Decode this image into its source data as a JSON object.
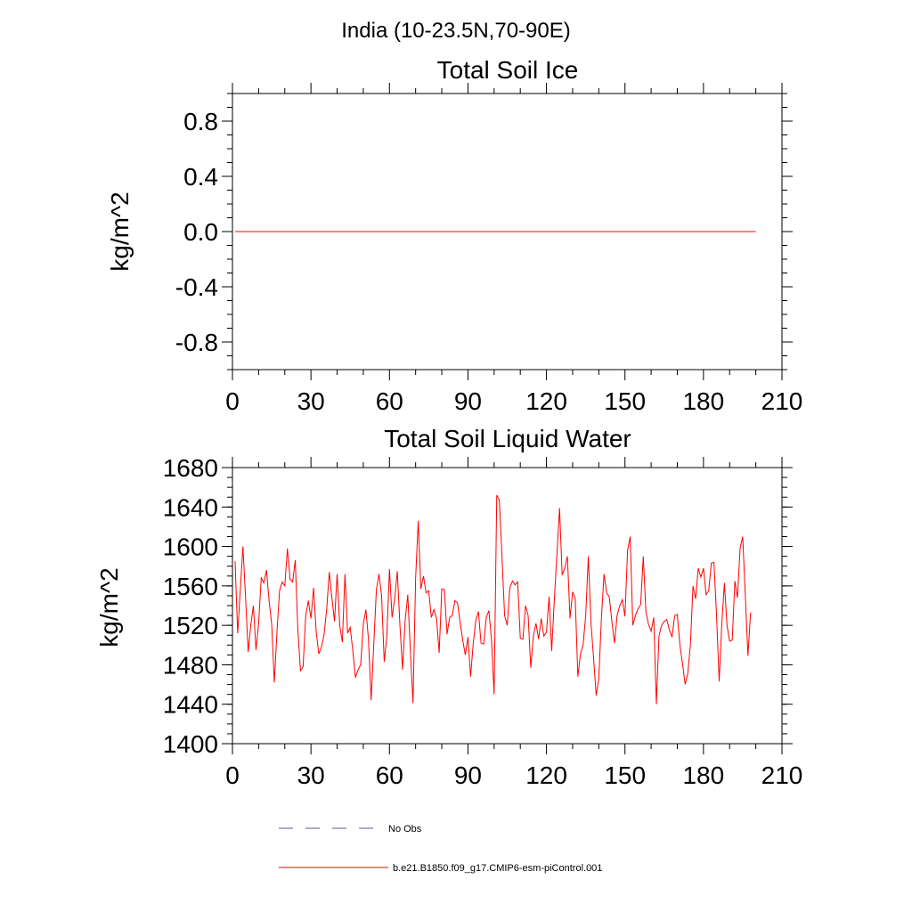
{
  "title": "India (10-23.5N,70-90E)",
  "chart_data": [
    {
      "type": "line",
      "title": "Total Soil Ice",
      "xlabel": "",
      "ylabel": "kg/m^2",
      "xlim": [
        0,
        210
      ],
      "ylim": [
        -1.0,
        1.0
      ],
      "xticks": [
        "0",
        "30",
        "60",
        "90",
        "120",
        "150",
        "180",
        "210"
      ],
      "yticks": [
        "0.8",
        "0.4",
        "0.0",
        "-0.4",
        "-0.8"
      ],
      "series": [
        {
          "name": "b.e21.B1850.f09_g17.CMIP6-esm-piControl.001",
          "color": "#ff0000",
          "x": [
            1,
            200
          ],
          "values": [
            0.0,
            0.0
          ]
        }
      ]
    },
    {
      "type": "line",
      "title": "Total Soil Liquid Water",
      "xlabel": "",
      "ylabel": "kg/m^2",
      "xlim": [
        0,
        210
      ],
      "ylim": [
        1400,
        1680
      ],
      "xticks": [
        "0",
        "30",
        "60",
        "90",
        "120",
        "150",
        "180",
        "210"
      ],
      "yticks": [
        "1680",
        "1640",
        "1600",
        "1560",
        "1520",
        "1480",
        "1440",
        "1400"
      ],
      "series": [
        {
          "name": "b.e21.B1850.f09_g17.CMIP6-esm-piControl.001",
          "color": "#ff0000",
          "x_start": 1,
          "x_step": 1,
          "values": [
            1585,
            1512,
            1556,
            1600,
            1549,
            1493,
            1520,
            1540,
            1495,
            1522,
            1568,
            1563,
            1576,
            1545,
            1521,
            1462,
            1513,
            1555,
            1564,
            1560,
            1598,
            1567,
            1564,
            1586,
            1515,
            1474,
            1478,
            1530,
            1545,
            1527,
            1558,
            1514,
            1491,
            1498,
            1510,
            1536,
            1574,
            1548,
            1524,
            1572,
            1520,
            1503,
            1572,
            1512,
            1518,
            1494,
            1467,
            1475,
            1480,
            1521,
            1536,
            1505,
            1444,
            1500,
            1556,
            1572,
            1550,
            1483,
            1509,
            1577,
            1528,
            1547,
            1575,
            1520,
            1475,
            1525,
            1551,
            1494,
            1441,
            1568,
            1626,
            1557,
            1570,
            1553,
            1555,
            1528,
            1536,
            1527,
            1492,
            1557,
            1556,
            1511,
            1528,
            1530,
            1545,
            1543,
            1523,
            1505,
            1490,
            1508,
            1468,
            1501,
            1525,
            1534,
            1502,
            1501,
            1528,
            1535,
            1505,
            1450,
            1652,
            1647,
            1590,
            1530,
            1520,
            1558,
            1565,
            1561,
            1564,
            1507,
            1506,
            1540,
            1530,
            1477,
            1509,
            1522,
            1506,
            1527,
            1509,
            1513,
            1549,
            1494,
            1546,
            1592,
            1639,
            1571,
            1578,
            1590,
            1527,
            1554,
            1547,
            1468,
            1491,
            1500,
            1530,
            1590,
            1523,
            1487,
            1449,
            1466,
            1527,
            1572,
            1553,
            1549,
            1524,
            1502,
            1530,
            1540,
            1546,
            1529,
            1596,
            1610,
            1520,
            1530,
            1537,
            1541,
            1590,
            1534,
            1521,
            1514,
            1528,
            1440,
            1509,
            1520,
            1524,
            1526,
            1515,
            1508,
            1530,
            1531,
            1500,
            1481,
            1460,
            1471,
            1500,
            1560,
            1547,
            1578,
            1569,
            1578,
            1551,
            1555,
            1583,
            1584,
            1530,
            1463,
            1521,
            1563,
            1520,
            1504,
            1505,
            1565,
            1548,
            1598,
            1610,
            1550,
            1489,
            1533
          ]
        }
      ]
    }
  ],
  "legend": [
    {
      "label": "No Obs",
      "style": "dashed",
      "color": "#5a5a8a"
    },
    {
      "label": "b.e21.B1850.f09_g17.CMIP6-esm-piControl.001",
      "style": "solid",
      "color": "#ff0000"
    }
  ]
}
